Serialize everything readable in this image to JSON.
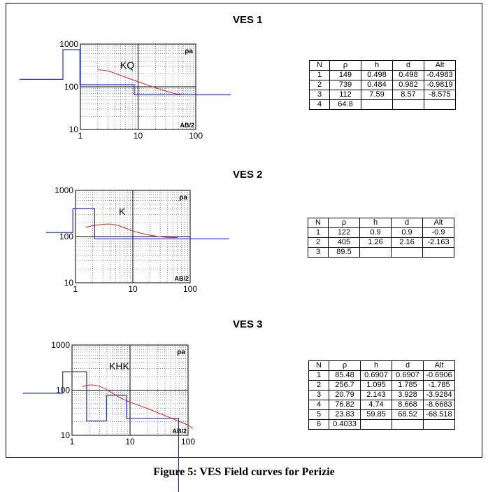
{
  "caption": "Figure 5: VES Field curves for Perizie",
  "chart_data": [
    {
      "type": "line",
      "title": "VES 1",
      "curve_type": "KQ",
      "ylabel": "ρa",
      "xlabel": "AB/2",
      "scale": "log-log",
      "xlim": [
        1,
        100
      ],
      "ylim": [
        10,
        1000
      ],
      "x_ticks": [
        "1",
        "10",
        "100"
      ],
      "y_ticks": [
        "10",
        "100",
        "1000"
      ],
      "field_curve": [
        [
          2,
          250
        ],
        [
          3,
          240
        ],
        [
          5,
          185
        ],
        [
          10,
          130
        ],
        [
          20,
          95
        ],
        [
          40,
          70
        ],
        [
          60,
          65
        ]
      ],
      "model": [
        {
          "rho": 149,
          "to_depth": 0.498
        },
        {
          "rho": 739,
          "to_depth": 0.982
        },
        {
          "rho": 112,
          "to_depth": 8.57
        },
        {
          "rho": 64.8,
          "to_depth": null
        }
      ],
      "table": {
        "columns": [
          "N",
          "ρ",
          "h",
          "d",
          "Alt"
        ],
        "rows": [
          [
            "1",
            "149",
            "0.498",
            "0.498",
            "-0.4983"
          ],
          [
            "2",
            "739",
            "0.484",
            "0.982",
            "-0.9819"
          ],
          [
            "3",
            "112",
            "7.59",
            "8.57",
            "-8.575"
          ],
          [
            "4",
            "64.8",
            "",
            "",
            ""
          ]
        ]
      }
    },
    {
      "type": "line",
      "title": "VES 2",
      "curve_type": "K",
      "ylabel": "ρa",
      "xlabel": "AB/2",
      "scale": "log-log",
      "xlim": [
        1,
        100
      ],
      "ylim": [
        10,
        1000
      ],
      "x_ticks": [
        "1",
        "10",
        "100"
      ],
      "y_ticks": [
        "10",
        "100",
        "1000"
      ],
      "field_curve": [
        [
          1.5,
          160
        ],
        [
          2.5,
          180
        ],
        [
          4,
          190
        ],
        [
          6,
          170
        ],
        [
          10,
          130
        ],
        [
          20,
          105
        ],
        [
          40,
          95
        ],
        [
          60,
          95
        ]
      ],
      "model": [
        {
          "rho": 122,
          "to_depth": 0.9
        },
        {
          "rho": 405,
          "to_depth": 2.16
        },
        {
          "rho": 89.5,
          "to_depth": null
        }
      ],
      "table": {
        "columns": [
          "N",
          "ρ",
          "h",
          "d",
          "Alt"
        ],
        "rows": [
          [
            "1",
            "122",
            "0.9",
            "0.9",
            "-0.9"
          ],
          [
            "2",
            "405",
            "1.26",
            "2.16",
            "-2.163"
          ],
          [
            "3",
            "89.5",
            "",
            "",
            ""
          ]
        ]
      }
    },
    {
      "type": "line",
      "title": "VES 3",
      "curve_type": "KHK",
      "ylabel": "ρa",
      "xlabel": "AB/2",
      "scale": "log-log",
      "xlim": [
        1,
        100
      ],
      "ylim": [
        10,
        1000
      ],
      "x_ticks": [
        "1",
        "10",
        "100"
      ],
      "y_ticks": [
        "10",
        "100",
        "1000"
      ],
      "field_curve": [
        [
          1.5,
          120
        ],
        [
          2.2,
          135
        ],
        [
          3.5,
          115
        ],
        [
          5,
          85
        ],
        [
          8,
          60
        ],
        [
          15,
          45
        ],
        [
          30,
          32
        ],
        [
          60,
          22
        ],
        [
          100,
          17
        ],
        [
          120,
          14
        ]
      ],
      "model": [
        {
          "rho": 85.48,
          "to_depth": 0.6907
        },
        {
          "rho": 256.7,
          "to_depth": 1.785
        },
        {
          "rho": 20.79,
          "to_depth": 3.928
        },
        {
          "rho": 76.82,
          "to_depth": 8.668
        },
        {
          "rho": 23.83,
          "to_depth": 68.52
        },
        {
          "rho": 0.4033,
          "to_depth": null
        }
      ],
      "table": {
        "columns": [
          "N",
          "ρ",
          "h",
          "d",
          "Alt"
        ],
        "rows": [
          [
            "1",
            "85.48",
            "0.6907",
            "0.6907",
            "-0.6906"
          ],
          [
            "2",
            "256.7",
            "1.095",
            "1.785",
            "-1.785"
          ],
          [
            "3",
            "20.79",
            "2.143",
            "3.928",
            "-3.9284"
          ],
          [
            "4",
            "76.82",
            "4.74",
            "8.668",
            "-8.6683"
          ],
          [
            "5",
            "23.83",
            "59.85",
            "68.52",
            "-68.518"
          ],
          [
            "6",
            "0.4033",
            "",
            "",
            ""
          ]
        ]
      }
    }
  ]
}
